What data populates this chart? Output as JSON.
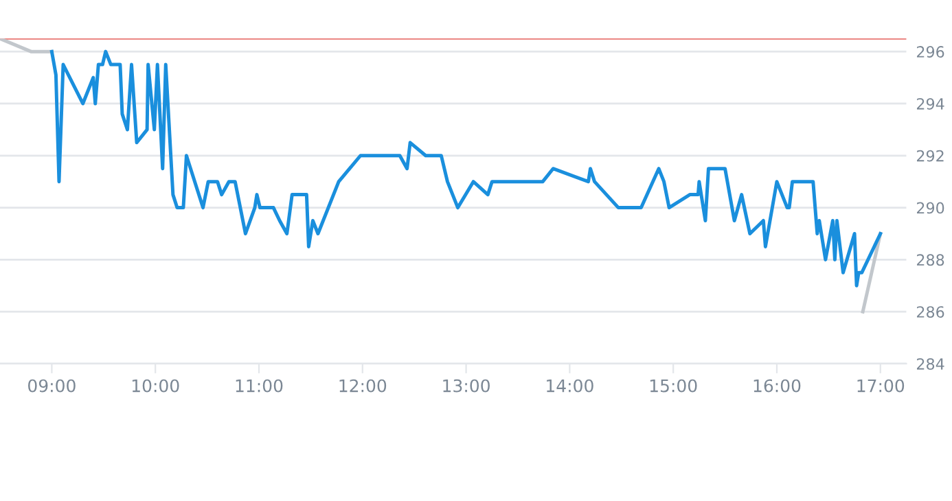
{
  "chart_data": {
    "type": "line",
    "xlim": [
      8.5,
      17.25
    ],
    "ylim": [
      284,
      296.5
    ],
    "xticks": [
      {
        "value": 9,
        "label": "09:00"
      },
      {
        "value": 10,
        "label": "10:00"
      },
      {
        "value": 11,
        "label": "11:00"
      },
      {
        "value": 12,
        "label": "12:00"
      },
      {
        "value": 13,
        "label": "13:00"
      },
      {
        "value": 14,
        "label": "14:00"
      },
      {
        "value": 15,
        "label": "15:00"
      },
      {
        "value": 16,
        "label": "16:00"
      },
      {
        "value": 17,
        "label": "17:00"
      }
    ],
    "yticks": [
      284,
      286,
      288,
      290,
      292,
      294,
      296
    ],
    "grid": "y",
    "marker": "none",
    "line_style": "solid",
    "ref_lines": [
      {
        "axis": "y",
        "value": 296.5,
        "color": "#e0403a"
      }
    ],
    "series": [
      {
        "color": "#c2c7cc",
        "x": [
          8.5,
          8.8,
          9.0
        ],
        "values": [
          296.5,
          296.0,
          296.0
        ]
      },
      {
        "color": "#c2c7cc",
        "x": [
          16.83,
          17.0
        ],
        "values": [
          286.0,
          289.0
        ]
      },
      {
        "color": "#1a8fdd",
        "x": [
          9.0,
          9.04,
          9.07,
          9.11,
          9.3,
          9.4,
          9.42,
          9.45,
          9.49,
          9.52,
          9.57,
          9.66,
          9.68,
          9.73,
          9.77,
          9.82,
          9.92,
          9.93,
          9.99,
          10.02,
          10.07,
          10.1,
          10.17,
          10.21,
          10.27,
          10.3,
          10.46,
          10.51,
          10.6,
          10.64,
          10.71,
          10.77,
          10.87,
          10.96,
          10.98,
          11.01,
          11.14,
          11.2,
          11.27,
          11.32,
          11.46,
          11.48,
          11.52,
          11.57,
          11.77,
          11.98,
          12.36,
          12.43,
          12.46,
          12.61,
          12.76,
          12.82,
          12.92,
          13.07,
          13.21,
          13.25,
          13.74,
          13.84,
          14.18,
          14.2,
          14.24,
          14.47,
          14.69,
          14.86,
          14.91,
          14.96,
          15.16,
          15.24,
          15.25,
          15.31,
          15.34,
          15.5,
          15.59,
          15.66,
          15.74,
          15.87,
          15.89,
          16.0,
          16.1,
          16.12,
          16.15,
          16.35,
          16.39,
          16.41,
          16.47,
          16.54,
          16.56,
          16.58,
          16.64,
          16.75,
          16.77,
          16.79,
          16.82,
          17.0
        ],
        "values": [
          296.0,
          295.1,
          291.0,
          295.5,
          294.0,
          295.0,
          294.0,
          295.5,
          295.5,
          296.0,
          295.5,
          295.5,
          293.6,
          293.0,
          295.5,
          292.5,
          293.0,
          295.5,
          293.0,
          295.5,
          291.5,
          295.5,
          290.5,
          290.0,
          290.0,
          292.0,
          290.0,
          291.0,
          291.0,
          290.5,
          291.0,
          291.0,
          289.0,
          290.0,
          290.5,
          290.0,
          290.0,
          289.5,
          289.0,
          290.5,
          290.5,
          288.5,
          289.5,
          289.0,
          291.0,
          292.0,
          292.0,
          291.5,
          292.5,
          292.0,
          292.0,
          291.0,
          290.0,
          291.0,
          290.5,
          291.0,
          291.0,
          291.5,
          291.0,
          291.5,
          291.0,
          290.0,
          290.0,
          291.5,
          291.0,
          290.0,
          290.5,
          290.5,
          291.0,
          289.5,
          291.5,
          291.5,
          289.5,
          290.5,
          289.0,
          289.5,
          288.5,
          291.0,
          290.0,
          290.0,
          291.0,
          291.0,
          289.0,
          289.5,
          288.0,
          289.5,
          288.0,
          289.5,
          287.5,
          289.0,
          287.0,
          287.5,
          287.5,
          289.0
        ]
      }
    ]
  }
}
